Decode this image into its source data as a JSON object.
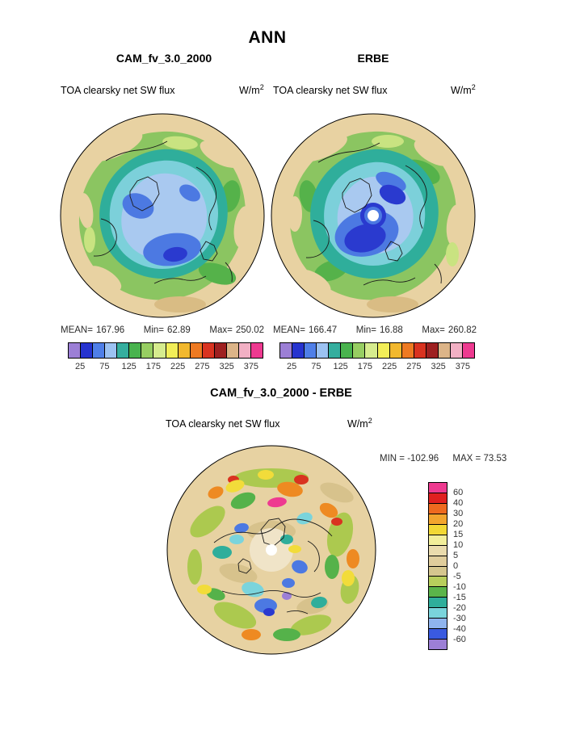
{
  "page": {
    "title": "ANN"
  },
  "top_section": {
    "panels": [
      {
        "title": "CAM_fv_3.0_2000",
        "subtitle": "TOA clearsky net SW flux",
        "units_base": "W/m",
        "units_exp": "2",
        "stats": {
          "mean_label": "MEAN=",
          "mean": "167.96",
          "min_label": "Min=",
          "min": "62.89",
          "max_label": "Max=",
          "max": "250.02"
        }
      },
      {
        "title": "ERBE",
        "subtitle": "TOA clearsky net SW flux",
        "units_base": "W/m",
        "units_exp": "2",
        "stats": {
          "mean_label": "MEAN=",
          "mean": "166.47",
          "min_label": "Min=",
          "min": "16.88",
          "max_label": "Max=",
          "max": "260.82"
        }
      }
    ],
    "colorbar": {
      "ticks": [
        "25",
        "75",
        "125",
        "175",
        "225",
        "275",
        "325",
        "375"
      ],
      "colors": [
        "#9C7FD6",
        "#2633CF",
        "#4F7FE8",
        "#9CC2F2",
        "#35AE9E",
        "#49B34E",
        "#97CE62",
        "#D6EC8E",
        "#F2EE58",
        "#F2B82E",
        "#EE7A22",
        "#D93320",
        "#9E2020",
        "#DCB488",
        "#F2B0C4",
        "#EE3A90"
      ]
    }
  },
  "diff_section": {
    "title": "CAM_fv_3.0_2000 - ERBE",
    "subtitle": "TOA clearsky net SW flux",
    "units_base": "W/m",
    "units_exp": "2",
    "min_label": "MIN =",
    "min": "-102.96",
    "max_label": "MAX =",
    "max": "73.53",
    "colorbar": {
      "ticks": [
        "60",
        "40",
        "30",
        "20",
        "15",
        "10",
        "5",
        "0",
        "-5",
        "-10",
        "-15",
        "-20",
        "-30",
        "-40",
        "-60"
      ],
      "colors": [
        "#EE3A90",
        "#E02020",
        "#EE6A1F",
        "#F2A52E",
        "#F2D835",
        "#F2EE9A",
        "#EADBAD",
        "#E0CD9C",
        "#D5C68E",
        "#B8CE5C",
        "#5BB44A",
        "#2FAE9B",
        "#7AD4DC",
        "#8FB4EE",
        "#3A5AE0",
        "#9C7FD6"
      ]
    }
  },
  "chart_data": [
    {
      "type": "heatmap",
      "subtype": "polar_stereographic_map",
      "region": "northern_hemisphere_polar",
      "season": "ANN",
      "title": "CAM_fv_3.0_2000",
      "variable": "TOA clearsky net SW flux",
      "units": "W/m2",
      "stats": {
        "mean": 167.96,
        "min": 62.89,
        "max": 250.02
      },
      "contour_tick_labels": [
        25,
        75,
        125,
        175,
        225,
        275,
        325,
        375
      ],
      "palette": [
        "#9C7FD6",
        "#2633CF",
        "#4F7FE8",
        "#9CC2F2",
        "#35AE9E",
        "#49B34E",
        "#97CE62",
        "#D6EC8E",
        "#F2EE58",
        "#F2B82E",
        "#EE7A22",
        "#D93320",
        "#9E2020",
        "#DCB488",
        "#F2B0C4",
        "#EE3A90"
      ],
      "legend_position": "bottom"
    },
    {
      "type": "heatmap",
      "subtype": "polar_stereographic_map",
      "region": "northern_hemisphere_polar",
      "season": "ANN",
      "title": "ERBE",
      "variable": "TOA clearsky net SW flux",
      "units": "W/m2",
      "stats": {
        "mean": 166.47,
        "min": 16.88,
        "max": 260.82
      },
      "contour_tick_labels": [
        25,
        75,
        125,
        175,
        225,
        275,
        325,
        375
      ],
      "palette": [
        "#9C7FD6",
        "#2633CF",
        "#4F7FE8",
        "#9CC2F2",
        "#35AE9E",
        "#49B34E",
        "#97CE62",
        "#D6EC8E",
        "#F2EE58",
        "#F2B82E",
        "#EE7A22",
        "#D93320",
        "#9E2020",
        "#DCB488",
        "#F2B0C4",
        "#EE3A90"
      ],
      "legend_position": "bottom"
    },
    {
      "type": "heatmap",
      "subtype": "polar_stereographic_map",
      "region": "northern_hemisphere_polar",
      "season": "ANN",
      "title": "CAM_fv_3.0_2000 - ERBE",
      "variable": "TOA clearsky net SW flux",
      "units": "W/m2",
      "stats": {
        "min": -102.96,
        "max": 73.53
      },
      "contour_levels": [
        60,
        40,
        30,
        20,
        15,
        10,
        5,
        0,
        -5,
        -10,
        -15,
        -20,
        -30,
        -40,
        -60
      ],
      "palette": [
        "#EE3A90",
        "#E02020",
        "#EE6A1F",
        "#F2A52E",
        "#F2D835",
        "#F2EE9A",
        "#EADBAD",
        "#E0CD9C",
        "#D5C68E",
        "#B8CE5C",
        "#5BB44A",
        "#2FAE9B",
        "#7AD4DC",
        "#8FB4EE",
        "#3A5AE0",
        "#9C7FD6"
      ],
      "legend_position": "right"
    }
  ]
}
